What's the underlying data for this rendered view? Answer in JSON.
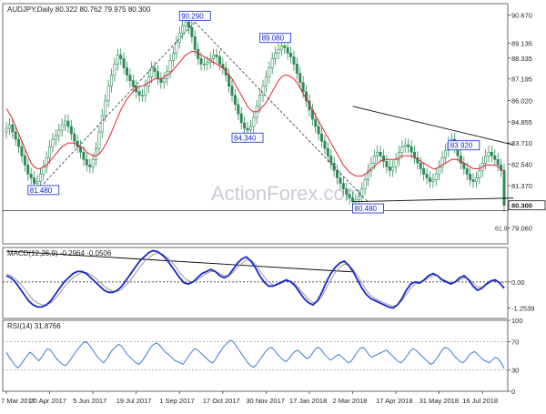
{
  "colors": {
    "candle": "#2e8b57",
    "ma": "#e8212b",
    "macd": "#1428c8",
    "signal": "#9a9a9a",
    "rsi": "#3a7bd5",
    "trendline": "#000000",
    "watermark": "#c8ccd4"
  },
  "chart_data": [
    {
      "type": "candlestick",
      "title": "AUDJPY,Daily  80.322 80.762 79.975 80.300",
      "watermark": "ActionForex.com",
      "ylim": [
        78.2,
        91.3
      ],
      "y_ticks": [
        "90.670",
        "89.135",
        "88.335",
        "87.195",
        "86.020",
        "84.855",
        "83.710",
        "82.540",
        "81.370",
        "80.300",
        "79.060"
      ],
      "y_tick_values": [
        90.67,
        89.135,
        88.335,
        87.195,
        86.02,
        84.855,
        83.71,
        82.54,
        81.37,
        80.3,
        79.06
      ],
      "last_price": "80.300",
      "fib_label": "61.8",
      "annotations": [
        {
          "text": "90.290",
          "x": 61,
          "y": 90.29
        },
        {
          "text": "89.080",
          "x": 87,
          "y": 89.08
        },
        {
          "text": "84.340",
          "x": 78,
          "y": 84.34
        },
        {
          "text": "81.480",
          "x": 12,
          "y": 81.48
        },
        {
          "text": "80.480",
          "x": 117,
          "y": 80.48
        },
        {
          "text": "83.920",
          "x": 148,
          "y": 83.92
        }
      ],
      "close_series": [
        84.5,
        84.7,
        84.3,
        83.9,
        83.5,
        83.0,
        82.5,
        82.0,
        81.8,
        81.5,
        81.6,
        82.0,
        82.4,
        82.9,
        83.5,
        83.9,
        84.1,
        84.4,
        84.7,
        84.9,
        84.6,
        84.2,
        83.8,
        83.5,
        83.2,
        82.8,
        82.5,
        82.4,
        82.8,
        83.4,
        84.3,
        85.2,
        86.0,
        86.8,
        87.4,
        88.0,
        88.5,
        88.3,
        87.8,
        87.4,
        87.1,
        86.8,
        86.5,
        86.3,
        86.3,
        86.8,
        87.3,
        87.8,
        87.6,
        87.2,
        87.0,
        87.2,
        87.6,
        88.2,
        88.6,
        89.2,
        89.7,
        90.1,
        90.3,
        90.0,
        89.5,
        88.8,
        88.3,
        88.0,
        88.0,
        88.1,
        88.3,
        88.5,
        88.4,
        88.0,
        87.8,
        87.4,
        86.8,
        86.3,
        85.8,
        85.3,
        84.8,
        84.5,
        84.4,
        84.6,
        85.1,
        85.7,
        86.3,
        86.8,
        87.3,
        87.8,
        88.3,
        88.6,
        88.8,
        89.0,
        88.9,
        88.6,
        88.4,
        88.0,
        87.5,
        87.0,
        86.5,
        86.0,
        85.5,
        85.0,
        84.6,
        84.2,
        83.8,
        83.4,
        83.0,
        82.6,
        82.2,
        81.8,
        81.5,
        81.2,
        80.9,
        80.7,
        80.5,
        80.6,
        80.8,
        81.2,
        81.7,
        82.2,
        82.6,
        83.0,
        83.2,
        83.0,
        82.7,
        82.4,
        82.2,
        82.4,
        82.8,
        83.2,
        83.5,
        83.6,
        83.5,
        83.2,
        82.9,
        82.6,
        82.3,
        82.0,
        81.8,
        81.6,
        81.7,
        82.0,
        82.4,
        82.9,
        83.3,
        83.7,
        83.9,
        83.5,
        83.0,
        82.6,
        82.3,
        82.0,
        81.7,
        81.6,
        81.8,
        82.2,
        82.6,
        83.0,
        83.2,
        83.0,
        82.8,
        82.5,
        82.2,
        80.3
      ],
      "ma_series": [
        85.6,
        85.3,
        85.0,
        84.6,
        84.2,
        83.8,
        83.4,
        83.0,
        82.6,
        82.4,
        82.3,
        82.3,
        82.4,
        82.5,
        82.7,
        82.9,
        83.1,
        83.3,
        83.5,
        83.6,
        83.7,
        83.7,
        83.7,
        83.6,
        83.5,
        83.4,
        83.2,
        83.1,
        83.0,
        83.0,
        83.1,
        83.3,
        83.6,
        83.9,
        84.3,
        84.7,
        85.1,
        85.5,
        85.8,
        86.1,
        86.3,
        86.5,
        86.7,
        86.8,
        86.8,
        86.9,
        87.0,
        87.1,
        87.2,
        87.2,
        87.2,
        87.3,
        87.4,
        87.5,
        87.7,
        87.9,
        88.1,
        88.3,
        88.5,
        88.6,
        88.7,
        88.7,
        88.6,
        88.5,
        88.4,
        88.3,
        88.2,
        88.1,
        88.0,
        87.9,
        87.8,
        87.6,
        87.4,
        87.2,
        86.9,
        86.6,
        86.3,
        86.0,
        85.7,
        85.5,
        85.4,
        85.4,
        85.5,
        85.7,
        85.9,
        86.2,
        86.5,
        86.8,
        87.1,
        87.3,
        87.4,
        87.4,
        87.3,
        87.2,
        87.0,
        86.7,
        86.4,
        86.1,
        85.8,
        85.5,
        85.2,
        84.9,
        84.6,
        84.3,
        84.0,
        83.7,
        83.4,
        83.1,
        82.8,
        82.5,
        82.3,
        82.1,
        82.0,
        81.9,
        81.9,
        81.9,
        82.0,
        82.1,
        82.3,
        82.4,
        82.6,
        82.7,
        82.8,
        82.8,
        82.8,
        82.8,
        82.8,
        82.9,
        83.0,
        83.0,
        83.0,
        83.0,
        82.9,
        82.8,
        82.7,
        82.6,
        82.5,
        82.4,
        82.3,
        82.3,
        82.4,
        82.5,
        82.6,
        82.7,
        82.8,
        82.8,
        82.8,
        82.7,
        82.6,
        82.5,
        82.4,
        82.3,
        82.3,
        82.3,
        82.4,
        82.5,
        82.5,
        82.5,
        82.5,
        82.4,
        82.3,
        82.1
      ]
    },
    {
      "type": "line",
      "title": "MACD(12,26,9) -0.2964 -0.0506",
      "ylim": [
        -1.75,
        1.65
      ],
      "y_ticks": [
        "0.00",
        "-1.2539"
      ],
      "y_tick_values": [
        0.0,
        -1.2539
      ],
      "series": [
        {
          "values": [
            0.3,
            0.2,
            0.0,
            -0.3,
            -0.6,
            -0.9,
            -1.1,
            -1.2,
            -1.2,
            -1.1,
            -0.9,
            -0.6,
            -0.3,
            0.0,
            0.2,
            0.4,
            0.5,
            0.5,
            0.4,
            0.2,
            0.0,
            -0.2,
            -0.4,
            -0.5,
            -0.5,
            -0.4,
            -0.2,
            0.1,
            0.4,
            0.7,
            1.0,
            1.2,
            1.4,
            1.5,
            1.45,
            1.3,
            1.1,
            0.8,
            0.5,
            0.2,
            -0.05,
            -0.1,
            0.0,
            0.2,
            0.4,
            0.5,
            0.6,
            0.5,
            0.3,
            0.2,
            0.3,
            0.6,
            0.9,
            1.1,
            1.2,
            1.0,
            0.7,
            0.3,
            0.0,
            -0.2,
            -0.2,
            -0.1,
            0.0,
            0.1,
            0.0,
            -0.2,
            -0.5,
            -0.8,
            -1.0,
            -1.1,
            -0.9,
            -0.5,
            0.0,
            0.4,
            0.7,
            0.9,
            1.0,
            0.8,
            0.5,
            0.1,
            -0.3,
            -0.6,
            -0.8,
            -0.9,
            -1.0,
            -1.1,
            -1.2,
            -1.25,
            -1.1,
            -0.8,
            -0.4,
            -0.1,
            0.0,
            -0.05,
            0.1,
            0.3,
            0.4,
            0.3,
            0.1,
            0.0,
            -0.1,
            0.0,
            0.2,
            0.3,
            0.1,
            -0.2,
            -0.4,
            -0.3,
            -0.1,
            0.05,
            0.1,
            -0.05,
            -0.3
          ],
          "color_key": "macd"
        },
        {
          "values": [
            0.4,
            0.3,
            0.15,
            -0.05,
            -0.3,
            -0.6,
            -0.85,
            -1.0,
            -1.1,
            -1.1,
            -1.0,
            -0.8,
            -0.55,
            -0.25,
            0.0,
            0.2,
            0.35,
            0.45,
            0.45,
            0.35,
            0.2,
            0.0,
            -0.2,
            -0.35,
            -0.45,
            -0.45,
            -0.35,
            -0.15,
            0.1,
            0.4,
            0.7,
            0.95,
            1.15,
            1.3,
            1.4,
            1.35,
            1.2,
            1.0,
            0.75,
            0.45,
            0.2,
            0.05,
            0.0,
            0.1,
            0.25,
            0.4,
            0.5,
            0.5,
            0.4,
            0.3,
            0.3,
            0.45,
            0.7,
            0.9,
            1.05,
            1.05,
            0.85,
            0.55,
            0.25,
            0.0,
            -0.15,
            -0.15,
            -0.05,
            0.05,
            0.05,
            -0.1,
            -0.35,
            -0.6,
            -0.85,
            -1.0,
            -0.95,
            -0.7,
            -0.3,
            0.1,
            0.45,
            0.7,
            0.85,
            0.8,
            0.6,
            0.3,
            -0.05,
            -0.4,
            -0.65,
            -0.8,
            -0.9,
            -1.0,
            -1.1,
            -1.15,
            -1.1,
            -0.9,
            -0.6,
            -0.3,
            -0.1,
            -0.05,
            0.05,
            0.2,
            0.3,
            0.3,
            0.15,
            0.05,
            -0.05,
            0.0,
            0.1,
            0.2,
            0.15,
            -0.05,
            -0.25,
            -0.25,
            -0.15,
            0.0,
            0.05,
            0.0,
            -0.05
          ],
          "color_key": "signal"
        }
      ],
      "trendline": [
        [
          0,
          1.48
        ],
        [
          112,
          0.48
        ]
      ]
    },
    {
      "type": "line",
      "title": "RSI(14) 31.8766",
      "ylim": [
        0,
        100
      ],
      "y_ticks": [
        "100",
        "70",
        "30",
        "0"
      ],
      "y_tick_values": [
        100,
        70,
        30,
        0
      ],
      "series": [
        {
          "values": [
            55,
            48,
            42,
            36,
            33,
            38,
            44,
            50,
            55,
            52,
            47,
            43,
            48,
            55,
            60,
            58,
            52,
            46,
            42,
            38,
            36,
            40,
            46,
            52,
            58,
            63,
            68,
            70,
            66,
            60,
            54,
            48,
            44,
            40,
            45,
            52,
            58,
            62,
            66,
            64,
            58,
            52,
            48,
            44,
            40,
            38,
            42,
            48,
            55,
            62,
            66,
            68,
            65,
            60,
            55,
            52,
            48,
            44,
            42,
            40,
            38,
            44,
            50,
            56,
            60,
            58,
            54,
            50,
            46,
            42,
            40,
            45,
            52,
            58,
            64,
            68,
            72,
            70,
            64,
            58,
            52,
            46,
            40,
            36,
            34,
            38,
            44,
            50,
            56,
            60,
            62,
            58,
            52,
            48,
            44,
            42,
            46,
            52,
            56,
            58,
            54,
            50,
            46,
            48,
            54,
            60,
            62,
            58,
            52,
            48,
            44,
            46,
            50,
            52,
            48,
            44,
            40,
            42,
            48,
            54,
            60,
            62,
            58,
            52,
            48,
            50,
            52,
            54,
            56,
            58,
            54,
            50,
            46,
            42,
            40,
            44,
            50,
            56,
            60,
            58,
            54,
            50,
            46,
            42,
            38,
            40,
            46,
            52,
            58,
            62,
            60,
            56,
            50,
            46,
            42,
            40,
            44,
            50,
            54,
            56,
            52,
            48,
            44,
            42,
            40,
            44,
            48,
            46,
            40,
            32
          ],
          "color_key": "rsi"
        }
      ]
    }
  ],
  "x_axis": {
    "ticks": [
      "7 Mar 2017",
      "20 Apr 2017",
      "5 Jun 2017",
      "19 Jul 2017",
      "1 Sep 2017",
      "17 Oct 2017",
      "30 Nov 2017",
      "17 Jan 2018",
      "2 Mar 2018",
      "17 Apr 2018",
      "31 May 2018",
      "16 Jul 2018"
    ],
    "tick_index": [
      0,
      14,
      28,
      42,
      56,
      70,
      84,
      98,
      112,
      126,
      140,
      154
    ]
  }
}
